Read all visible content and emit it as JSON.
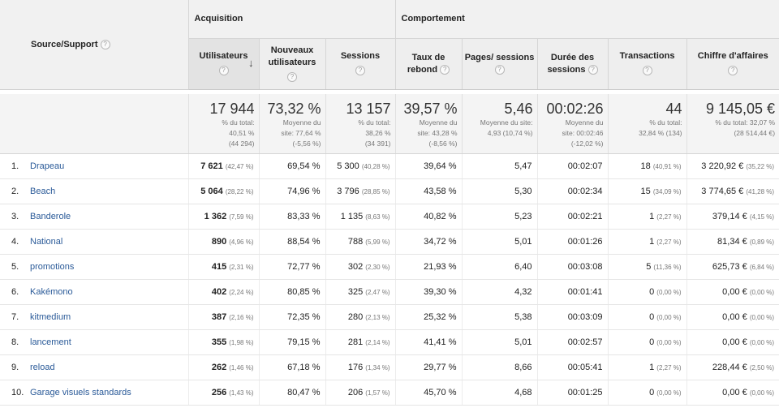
{
  "header": {
    "source_label": "Source/Support",
    "group_acquisition": "Acquisition",
    "group_behavior": "Comportement",
    "columns": [
      {
        "label": "Utilisateurs"
      },
      {
        "label": "Nouveaux utilisateurs"
      },
      {
        "label": "Sessions"
      },
      {
        "label": "Taux de rebond"
      },
      {
        "label": "Pages/ sessions"
      },
      {
        "label": "Durée des sessions"
      },
      {
        "label": "Transactions"
      },
      {
        "label": "Chiffre d'affaires"
      }
    ],
    "help_icon": "?",
    "sort_icon": "↓"
  },
  "totals": [
    {
      "value": "17 944",
      "l1": "% du total:",
      "l2": "40,51 %",
      "l3": "(44 294)"
    },
    {
      "value": "73,32 %",
      "l1": "Moyenne du",
      "l2": "site: 77,64 %",
      "l3": "(-5,56 %)"
    },
    {
      "value": "13 157",
      "l1": "% du total:",
      "l2": "38,26 %",
      "l3": "(34 391)"
    },
    {
      "value": "39,57 %",
      "l1": "Moyenne du",
      "l2": "site: 43,28 %",
      "l3": "(-8,56 %)"
    },
    {
      "value": "5,46",
      "l1": "Moyenne du site:",
      "l2": "4,93 (10,74 %)",
      "l3": ""
    },
    {
      "value": "00:02:26",
      "l1": "Moyenne du",
      "l2": "site: 00:02:46",
      "l3": "(-12,02 %)"
    },
    {
      "value": "44",
      "l1": "% du total:",
      "l2": "32,84 % (134)",
      "l3": ""
    },
    {
      "value": "9 145,05 €",
      "l1": "% du total: 32,07 %",
      "l2": "(28 514,44 €)",
      "l3": ""
    }
  ],
  "rows": [
    {
      "idx": "1.",
      "source": "Drapeau",
      "users": "7 621",
      "users_pct": "(42,47 %)",
      "new_users": "69,54 %",
      "sessions": "5 300",
      "sessions_pct": "(40,28 %)",
      "bounce": "39,64 %",
      "pages": "5,47",
      "duration": "00:02:07",
      "trans": "18",
      "trans_pct": "(40,91 %)",
      "revenue": "3 220,92 €",
      "revenue_pct": "(35,22 %)"
    },
    {
      "idx": "2.",
      "source": "Beach",
      "users": "5 064",
      "users_pct": "(28,22 %)",
      "new_users": "74,96 %",
      "sessions": "3 796",
      "sessions_pct": "(28,85 %)",
      "bounce": "43,58 %",
      "pages": "5,30",
      "duration": "00:02:34",
      "trans": "15",
      "trans_pct": "(34,09 %)",
      "revenue": "3 774,65 €",
      "revenue_pct": "(41,28 %)"
    },
    {
      "idx": "3.",
      "source": "Banderole",
      "users": "1 362",
      "users_pct": "(7,59 %)",
      "new_users": "83,33 %",
      "sessions": "1 135",
      "sessions_pct": "(8,63 %)",
      "bounce": "40,82 %",
      "pages": "5,23",
      "duration": "00:02:21",
      "trans": "1",
      "trans_pct": "(2,27 %)",
      "revenue": "379,14 €",
      "revenue_pct": "(4,15 %)"
    },
    {
      "idx": "4.",
      "source": "National",
      "users": "890",
      "users_pct": "(4,96 %)",
      "new_users": "88,54 %",
      "sessions": "788",
      "sessions_pct": "(5,99 %)",
      "bounce": "34,72 %",
      "pages": "5,01",
      "duration": "00:01:26",
      "trans": "1",
      "trans_pct": "(2,27 %)",
      "revenue": "81,34 €",
      "revenue_pct": "(0,89 %)"
    },
    {
      "idx": "5.",
      "source": "promotions",
      "users": "415",
      "users_pct": "(2,31 %)",
      "new_users": "72,77 %",
      "sessions": "302",
      "sessions_pct": "(2,30 %)",
      "bounce": "21,93 %",
      "pages": "6,40",
      "duration": "00:03:08",
      "trans": "5",
      "trans_pct": "(11,36 %)",
      "revenue": "625,73 €",
      "revenue_pct": "(6,84 %)"
    },
    {
      "idx": "6.",
      "source": "Kakémono",
      "users": "402",
      "users_pct": "(2,24 %)",
      "new_users": "80,85 %",
      "sessions": "325",
      "sessions_pct": "(2,47 %)",
      "bounce": "39,30 %",
      "pages": "4,32",
      "duration": "00:01:41",
      "trans": "0",
      "trans_pct": "(0,00 %)",
      "revenue": "0,00 €",
      "revenue_pct": "(0,00 %)"
    },
    {
      "idx": "7.",
      "source": "kitmedium",
      "users": "387",
      "users_pct": "(2,16 %)",
      "new_users": "72,35 %",
      "sessions": "280",
      "sessions_pct": "(2,13 %)",
      "bounce": "25,32 %",
      "pages": "5,38",
      "duration": "00:03:09",
      "trans": "0",
      "trans_pct": "(0,00 %)",
      "revenue": "0,00 €",
      "revenue_pct": "(0,00 %)"
    },
    {
      "idx": "8.",
      "source": "lancement",
      "users": "355",
      "users_pct": "(1,98 %)",
      "new_users": "79,15 %",
      "sessions": "281",
      "sessions_pct": "(2,14 %)",
      "bounce": "41,41 %",
      "pages": "5,01",
      "duration": "00:02:57",
      "trans": "0",
      "trans_pct": "(0,00 %)",
      "revenue": "0,00 €",
      "revenue_pct": "(0,00 %)"
    },
    {
      "idx": "9.",
      "source": "reload",
      "users": "262",
      "users_pct": "(1,46 %)",
      "new_users": "67,18 %",
      "sessions": "176",
      "sessions_pct": "(1,34 %)",
      "bounce": "29,77 %",
      "pages": "8,66",
      "duration": "00:05:41",
      "trans": "1",
      "trans_pct": "(2,27 %)",
      "revenue": "228,44 €",
      "revenue_pct": "(2,50 %)"
    },
    {
      "idx": "10.",
      "source": "Garage visuels standards",
      "users": "256",
      "users_pct": "(1,43 %)",
      "new_users": "80,47 %",
      "sessions": "206",
      "sessions_pct": "(1,57 %)",
      "bounce": "45,70 %",
      "pages": "4,68",
      "duration": "00:01:25",
      "trans": "0",
      "trans_pct": "(0,00 %)",
      "revenue": "0,00 €",
      "revenue_pct": "(0,00 %)"
    }
  ]
}
